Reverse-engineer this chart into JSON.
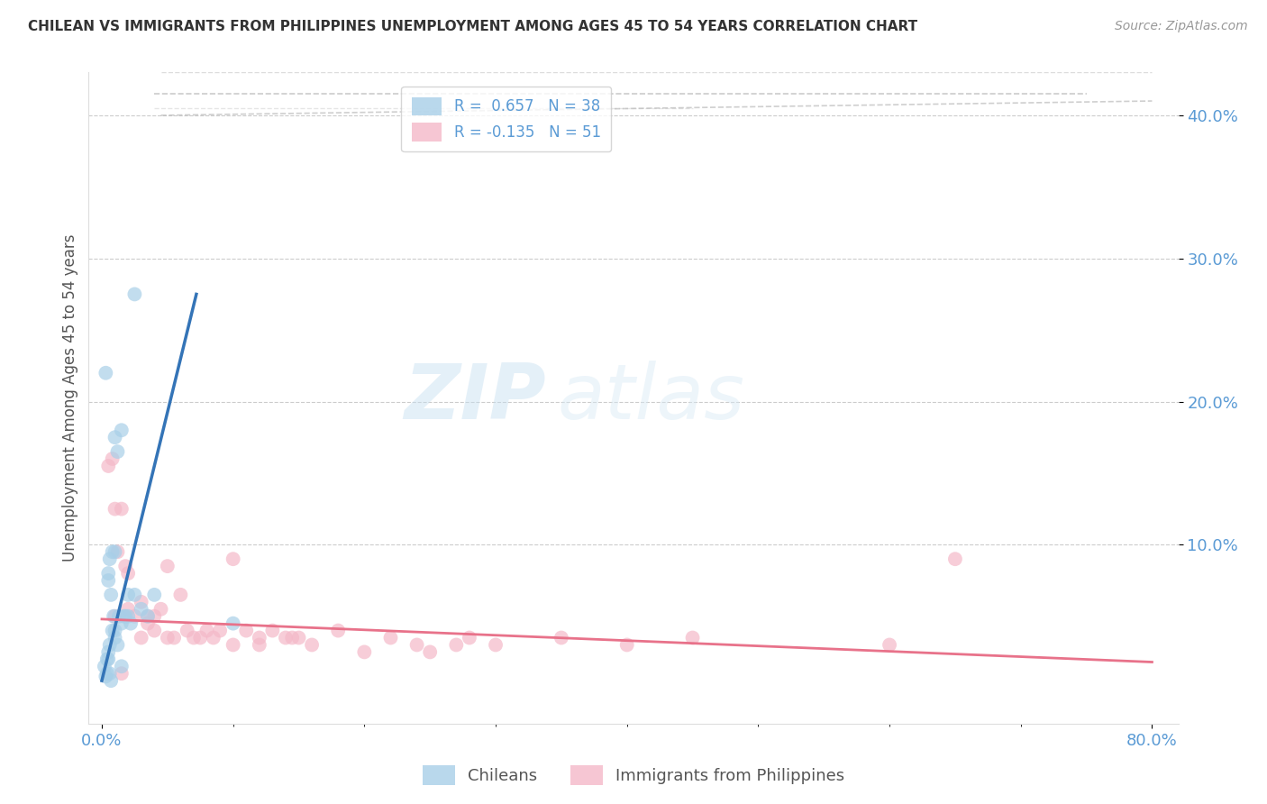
{
  "title": "CHILEAN VS IMMIGRANTS FROM PHILIPPINES UNEMPLOYMENT AMONG AGES 45 TO 54 YEARS CORRELATION CHART",
  "source": "Source: ZipAtlas.com",
  "ylabel": "Unemployment Among Ages 45 to 54 years",
  "x_tick_labels_ends": [
    "0.0%",
    "80.0%"
  ],
  "x_tick_vals": [
    0.0,
    10.0,
    20.0,
    30.0,
    40.0,
    50.0,
    60.0,
    70.0,
    80.0
  ],
  "y_tick_labels": [
    "10.0%",
    "20.0%",
    "30.0%",
    "40.0%"
  ],
  "y_tick_vals": [
    10.0,
    20.0,
    30.0,
    40.0
  ],
  "xlim": [
    -1.0,
    82.0
  ],
  "ylim": [
    -2.5,
    43.0
  ],
  "chileans_R": 0.657,
  "chileans_N": 38,
  "philippines_R": -0.135,
  "philippines_N": 51,
  "legend_label_blue": "Chileans",
  "legend_label_pink": "Immigrants from Philippines",
  "blue_color": "#a8cfe8",
  "pink_color": "#f4b8c8",
  "blue_line_color": "#3474b7",
  "pink_line_color": "#e8728a",
  "watermark_zip": "ZIP",
  "watermark_atlas": "atlas",
  "blue_trend_x": [
    0.0,
    7.2
  ],
  "blue_trend_y": [
    0.5,
    27.5
  ],
  "pink_trend_x": [
    0.0,
    80.0
  ],
  "pink_trend_y": [
    4.8,
    1.8
  ],
  "dash_line_x": [
    4.5,
    80.0
  ],
  "dash_line_y": [
    42.0,
    42.0
  ],
  "blue_dots_x": [
    0.2,
    0.3,
    0.4,
    0.4,
    0.5,
    0.5,
    0.5,
    0.6,
    0.6,
    0.7,
    0.8,
    0.8,
    0.9,
    1.0,
    1.0,
    1.0,
    1.2,
    1.3,
    1.5,
    1.5,
    1.7,
    1.8,
    2.0,
    2.0,
    2.2,
    2.5,
    2.5,
    3.0,
    3.5,
    4.0,
    0.3,
    0.5,
    0.6,
    0.7,
    1.0,
    1.2,
    1.5,
    10.0
  ],
  "blue_dots_y": [
    1.5,
    0.8,
    2.0,
    1.0,
    8.0,
    7.5,
    2.5,
    9.0,
    3.0,
    6.5,
    9.5,
    4.0,
    5.0,
    9.5,
    17.5,
    3.5,
    16.5,
    5.0,
    18.0,
    4.5,
    5.0,
    5.0,
    6.5,
    5.0,
    4.5,
    27.5,
    6.5,
    5.5,
    5.0,
    6.5,
    22.0,
    2.0,
    1.0,
    0.5,
    4.0,
    3.0,
    1.5,
    4.5
  ],
  "pink_dots_x": [
    0.5,
    0.8,
    1.0,
    1.0,
    1.2,
    1.5,
    1.5,
    1.8,
    2.0,
    2.0,
    2.5,
    3.0,
    3.0,
    3.5,
    3.5,
    4.0,
    4.0,
    4.5,
    5.0,
    5.0,
    5.5,
    6.0,
    6.5,
    7.0,
    7.5,
    8.0,
    8.5,
    9.0,
    10.0,
    10.0,
    11.0,
    12.0,
    12.0,
    13.0,
    14.0,
    14.5,
    15.0,
    16.0,
    18.0,
    20.0,
    22.0,
    24.0,
    25.0,
    27.0,
    28.0,
    30.0,
    35.0,
    40.0,
    45.0,
    60.0,
    65.0
  ],
  "pink_dots_y": [
    15.5,
    16.0,
    12.5,
    5.0,
    9.5,
    12.5,
    1.0,
    8.5,
    8.0,
    5.5,
    5.0,
    6.0,
    3.5,
    5.0,
    4.5,
    5.0,
    4.0,
    5.5,
    8.5,
    3.5,
    3.5,
    6.5,
    4.0,
    3.5,
    3.5,
    4.0,
    3.5,
    4.0,
    9.0,
    3.0,
    4.0,
    3.5,
    3.0,
    4.0,
    3.5,
    3.5,
    3.5,
    3.0,
    4.0,
    2.5,
    3.5,
    3.0,
    2.5,
    3.0,
    3.5,
    3.0,
    3.5,
    3.0,
    3.5,
    3.0,
    9.0
  ]
}
